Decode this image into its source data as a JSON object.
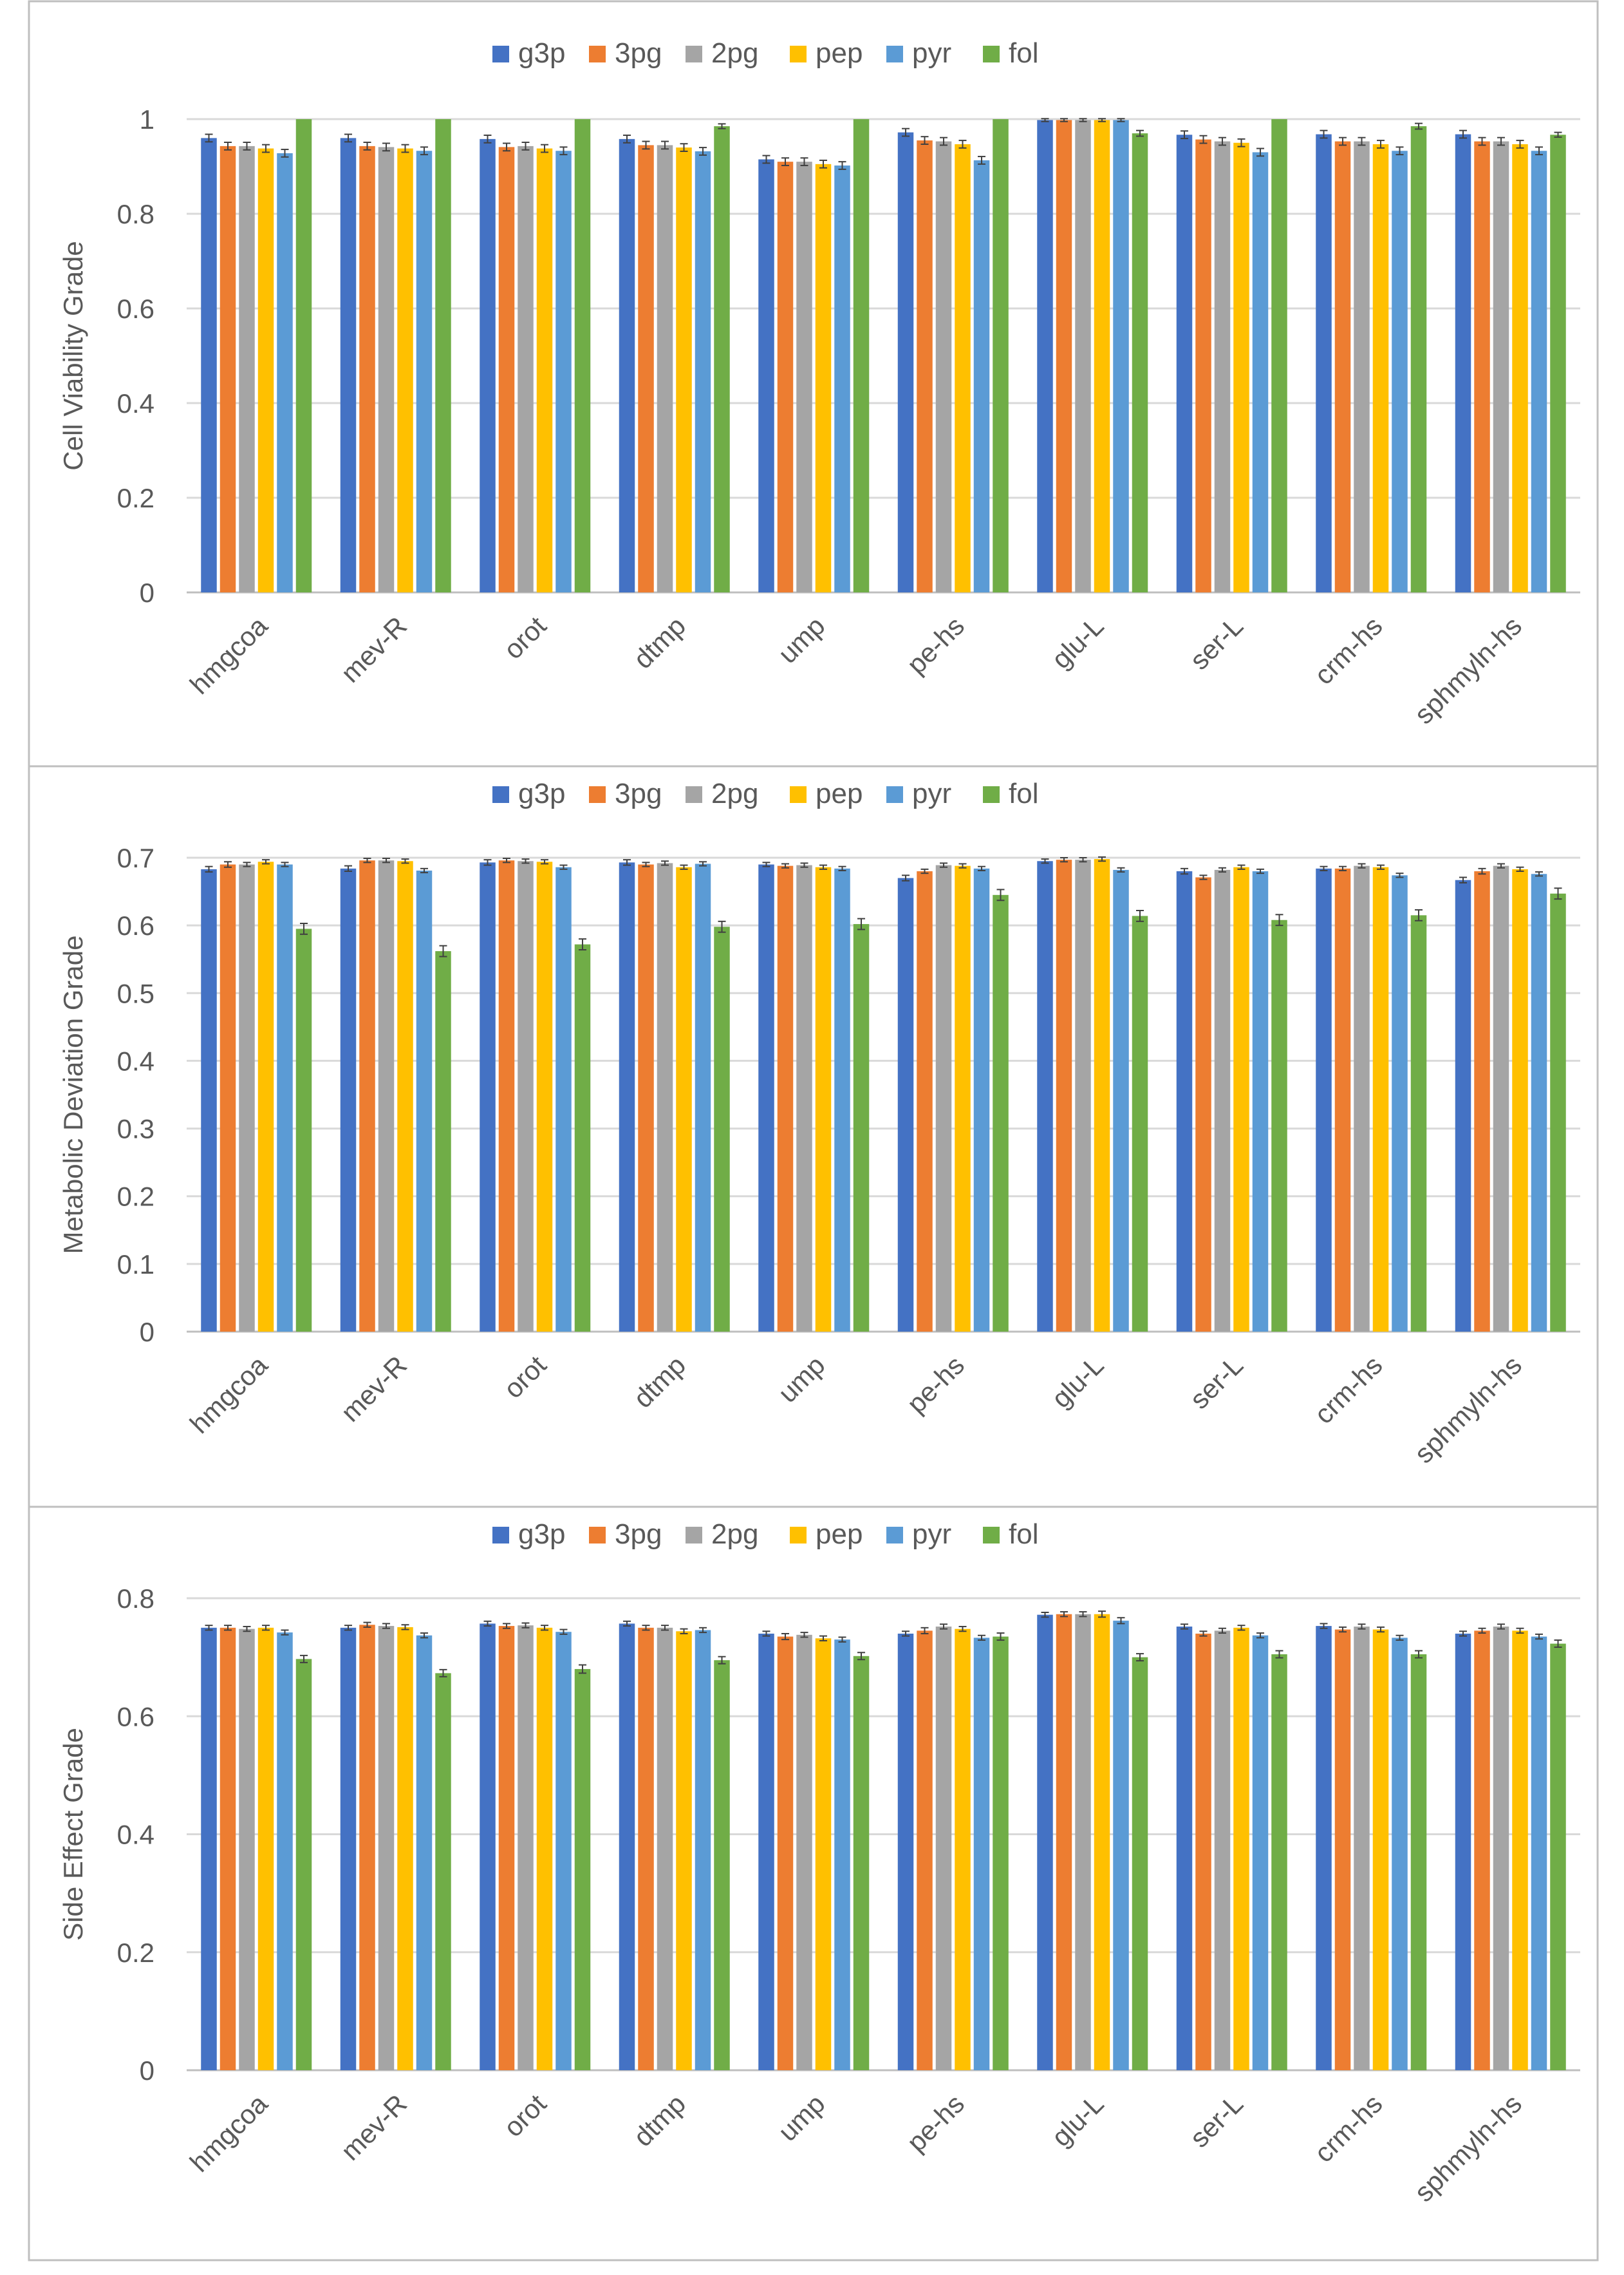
{
  "colors": {
    "g3p": "#4472C4",
    "3pg": "#ED7D31",
    "2pg": "#A5A5A5",
    "pep": "#FFC000",
    "pyr": "#5B9BD5",
    "fol": "#70AD47",
    "grid": "#D9D9D9",
    "text": "#595959",
    "border": "#BFBFBF"
  },
  "chart_data": [
    {
      "type": "bar",
      "title": "",
      "ylabel": "Cell Viability Grade",
      "xlabel": "",
      "ylim": [
        0,
        1
      ],
      "yticks": [
        "0",
        "0.2",
        "0.4",
        "0.6",
        "0.8",
        "1"
      ],
      "legend_position": "top",
      "categories": [
        "hmgcoa",
        "mev-R",
        "orot",
        "dtmp",
        "ump",
        "pe-hs",
        "glu-L",
        "ser-L",
        "crm-hs",
        "sphmyln-hs"
      ],
      "series": [
        {
          "name": "g3p",
          "values": [
            0.96,
            0.96,
            0.958,
            0.958,
            0.915,
            0.972,
            0.998,
            0.967,
            0.968,
            0.968
          ],
          "errors": [
            0.008,
            0.008,
            0.008,
            0.008,
            0.008,
            0.008,
            0.003,
            0.008,
            0.008,
            0.008
          ]
        },
        {
          "name": "3pg",
          "values": [
            0.943,
            0.943,
            0.941,
            0.945,
            0.91,
            0.955,
            0.998,
            0.957,
            0.953,
            0.953
          ],
          "errors": [
            0.008,
            0.008,
            0.008,
            0.008,
            0.008,
            0.008,
            0.003,
            0.008,
            0.008,
            0.008
          ]
        },
        {
          "name": "2pg",
          "values": [
            0.943,
            0.941,
            0.943,
            0.945,
            0.91,
            0.953,
            0.998,
            0.953,
            0.953,
            0.953
          ],
          "errors": [
            0.008,
            0.008,
            0.008,
            0.008,
            0.008,
            0.008,
            0.003,
            0.008,
            0.008,
            0.008
          ]
        },
        {
          "name": "pep",
          "values": [
            0.938,
            0.938,
            0.938,
            0.94,
            0.905,
            0.947,
            0.998,
            0.95,
            0.947,
            0.947
          ],
          "errors": [
            0.008,
            0.008,
            0.008,
            0.008,
            0.008,
            0.008,
            0.003,
            0.008,
            0.008,
            0.008
          ]
        },
        {
          "name": "pyr",
          "values": [
            0.928,
            0.933,
            0.933,
            0.932,
            0.902,
            0.913,
            0.998,
            0.93,
            0.933,
            0.933
          ],
          "errors": [
            0.008,
            0.008,
            0.008,
            0.008,
            0.008,
            0.008,
            0.003,
            0.008,
            0.008,
            0.008
          ]
        },
        {
          "name": "fol",
          "values": [
            1.0,
            1.0,
            1.0,
            0.985,
            1.0,
            1.0,
            0.97,
            1.0,
            0.985,
            0.967
          ],
          "errors": [
            0.0,
            0.0,
            0.0,
            0.005,
            0.0,
            0.0,
            0.006,
            0.0,
            0.006,
            0.005
          ]
        }
      ]
    },
    {
      "type": "bar",
      "title": "",
      "ylabel": "Metabolic Deviation Grade",
      "xlabel": "",
      "ylim": [
        0,
        0.7
      ],
      "yticks": [
        "0",
        "0.1",
        "0.2",
        "0.3",
        "0.4",
        "0.5",
        "0.6",
        "0.7"
      ],
      "legend_position": "top",
      "categories": [
        "hmgcoa",
        "mev-R",
        "orot",
        "dtmp",
        "ump",
        "pe-hs",
        "glu-L",
        "ser-L",
        "crm-hs",
        "sphmyln-hs"
      ],
      "series": [
        {
          "name": "g3p",
          "values": [
            0.683,
            0.684,
            0.693,
            0.693,
            0.69,
            0.67,
            0.695,
            0.68,
            0.684,
            0.667
          ],
          "errors": [
            0.004,
            0.004,
            0.004,
            0.004,
            0.003,
            0.004,
            0.003,
            0.004,
            0.003,
            0.004
          ]
        },
        {
          "name": "3pg",
          "values": [
            0.69,
            0.696,
            0.696,
            0.69,
            0.688,
            0.68,
            0.697,
            0.671,
            0.684,
            0.68
          ],
          "errors": [
            0.004,
            0.003,
            0.003,
            0.003,
            0.003,
            0.003,
            0.003,
            0.003,
            0.003,
            0.004
          ]
        },
        {
          "name": "2pg",
          "values": [
            0.69,
            0.696,
            0.695,
            0.692,
            0.689,
            0.689,
            0.697,
            0.682,
            0.688,
            0.688
          ],
          "errors": [
            0.003,
            0.003,
            0.003,
            0.003,
            0.003,
            0.003,
            0.003,
            0.003,
            0.003,
            0.003
          ]
        },
        {
          "name": "pep",
          "values": [
            0.694,
            0.695,
            0.694,
            0.686,
            0.686,
            0.688,
            0.698,
            0.686,
            0.686,
            0.683
          ],
          "errors": [
            0.003,
            0.003,
            0.003,
            0.003,
            0.003,
            0.003,
            0.003,
            0.003,
            0.003,
            0.003
          ]
        },
        {
          "name": "pyr",
          "values": [
            0.69,
            0.681,
            0.686,
            0.691,
            0.684,
            0.684,
            0.682,
            0.68,
            0.674,
            0.676
          ],
          "errors": [
            0.003,
            0.003,
            0.003,
            0.003,
            0.003,
            0.003,
            0.003,
            0.003,
            0.003,
            0.003
          ]
        },
        {
          "name": "fol",
          "values": [
            0.595,
            0.562,
            0.572,
            0.598,
            0.602,
            0.645,
            0.614,
            0.608,
            0.615,
            0.647
          ],
          "errors": [
            0.008,
            0.008,
            0.008,
            0.008,
            0.008,
            0.008,
            0.008,
            0.008,
            0.008,
            0.008
          ]
        }
      ]
    },
    {
      "type": "bar",
      "title": "",
      "ylabel": "Side Effect Grade",
      "xlabel": "",
      "ylim": [
        0,
        0.8
      ],
      "yticks": [
        "0",
        "0.2",
        "0.4",
        "0.6",
        "0.8"
      ],
      "legend_position": "top",
      "categories": [
        "hmgcoa",
        "mev-R",
        "orot",
        "dtmp",
        "ump",
        "pe-hs",
        "glu-L",
        "ser-L",
        "crm-hs",
        "sphmyln-hs"
      ],
      "series": [
        {
          "name": "g3p",
          "values": [
            0.75,
            0.75,
            0.757,
            0.757,
            0.74,
            0.74,
            0.772,
            0.752,
            0.753,
            0.74
          ],
          "errors": [
            0.004,
            0.004,
            0.004,
            0.004,
            0.004,
            0.004,
            0.004,
            0.004,
            0.004,
            0.004
          ]
        },
        {
          "name": "3pg",
          "values": [
            0.75,
            0.755,
            0.753,
            0.75,
            0.735,
            0.745,
            0.773,
            0.74,
            0.747,
            0.745
          ],
          "errors": [
            0.004,
            0.004,
            0.004,
            0.004,
            0.005,
            0.005,
            0.004,
            0.004,
            0.004,
            0.004
          ]
        },
        {
          "name": "2pg",
          "values": [
            0.748,
            0.753,
            0.754,
            0.75,
            0.738,
            0.752,
            0.773,
            0.745,
            0.752,
            0.752
          ],
          "errors": [
            0.004,
            0.004,
            0.004,
            0.004,
            0.004,
            0.004,
            0.004,
            0.004,
            0.004,
            0.004
          ]
        },
        {
          "name": "pep",
          "values": [
            0.75,
            0.751,
            0.75,
            0.744,
            0.732,
            0.748,
            0.773,
            0.75,
            0.747,
            0.745
          ],
          "errors": [
            0.004,
            0.004,
            0.004,
            0.004,
            0.004,
            0.004,
            0.005,
            0.004,
            0.004,
            0.004
          ]
        },
        {
          "name": "pyr",
          "values": [
            0.742,
            0.737,
            0.743,
            0.746,
            0.73,
            0.733,
            0.762,
            0.737,
            0.733,
            0.735
          ],
          "errors": [
            0.004,
            0.004,
            0.004,
            0.004,
            0.004,
            0.004,
            0.005,
            0.004,
            0.004,
            0.004
          ]
        },
        {
          "name": "fol",
          "values": [
            0.697,
            0.673,
            0.68,
            0.695,
            0.702,
            0.735,
            0.7,
            0.705,
            0.705,
            0.723
          ],
          "errors": [
            0.006,
            0.006,
            0.007,
            0.006,
            0.006,
            0.006,
            0.006,
            0.006,
            0.006,
            0.006
          ]
        }
      ]
    }
  ]
}
